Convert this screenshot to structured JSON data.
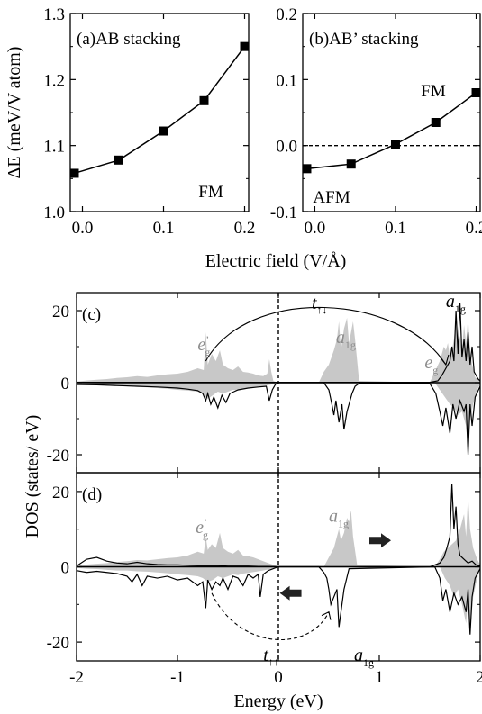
{
  "colors": {
    "axes": "#000000",
    "fill_grey": "#c8c8c8",
    "text_grey": "#8c8c8c",
    "line": "#000000"
  },
  "chart_data": [
    {
      "type": "line",
      "panel_label": "(a)AB stacking",
      "annotation": "FM",
      "x": [
        -0.01,
        0.045,
        0.1,
        0.15,
        0.2
      ],
      "y": [
        1.058,
        1.078,
        1.122,
        1.168,
        1.25
      ],
      "xlim": [
        -0.015,
        0.205
      ],
      "ylim": [
        1.0,
        1.3
      ],
      "xticks": [
        0.0,
        0.1,
        0.2
      ],
      "xtick_labels": [
        "0.0",
        "0.1",
        "0.2"
      ],
      "yticks": [
        1.0,
        1.1,
        1.2,
        1.3
      ],
      "ytick_labels": [
        "1.0",
        "1.1",
        "1.2",
        "1.3"
      ],
      "ylabel": "ΔE (meV/V atom)",
      "marker": "square"
    },
    {
      "type": "line",
      "panel_label": "(b)AB’ stacking",
      "annotation_top": "FM",
      "annotation_bottom": "AFM",
      "x": [
        -0.01,
        0.045,
        0.1,
        0.15,
        0.2
      ],
      "y": [
        -0.035,
        -0.028,
        0.002,
        0.035,
        0.08
      ],
      "xlim": [
        -0.015,
        0.205
      ],
      "ylim": [
        -0.1,
        0.2
      ],
      "xticks": [
        0.0,
        0.1,
        0.2
      ],
      "xtick_labels": [
        "0.0",
        "0.1",
        "0.2"
      ],
      "yticks": [
        -0.1,
        0.0,
        0.1,
        0.2
      ],
      "ytick_labels": [
        "-0.1",
        "0.0",
        "0.1",
        "0.2"
      ],
      "zero_line": "dashed",
      "marker": "square"
    }
  ],
  "xlabel_top": "Electric field (V/Å)",
  "dos": {
    "type": "area",
    "ylabel": "DOS (states/ eV)",
    "xlabel": "Energy (eV)",
    "xlim": [
      -2,
      2
    ],
    "ylim": [
      -25,
      25
    ],
    "xticks": [
      -2,
      -1,
      0,
      1,
      2
    ],
    "xtick_labels": [
      "-2",
      "-1",
      "0",
      "1",
      "2"
    ],
    "yticks": [
      -20,
      0,
      20
    ],
    "ytick_labels": [
      "-20",
      "0",
      "20"
    ],
    "fermi_level": 0,
    "panels": [
      {
        "label": "(c)",
        "hopping_label": "t",
        "hopping_sub": "↑↓",
        "orbital_labels": [
          {
            "text": "e",
            "sub": "g",
            "prime": "’",
            "color": "grey",
            "x": -0.8,
            "y": 9
          },
          {
            "text": "a",
            "sub": "1g",
            "color": "grey",
            "x": 0.57,
            "y": 11
          },
          {
            "text": "e",
            "sub": "g",
            "color": "grey",
            "x": 1.45,
            "y": 4
          },
          {
            "text": "a",
            "sub": "1g",
            "color": "black",
            "x": 1.66,
            "y": 21
          }
        ],
        "grey_up": {
          "x": [
            -2.0,
            -1.9,
            -1.8,
            -1.7,
            -1.6,
            -1.5,
            -1.4,
            -1.3,
            -1.2,
            -1.1,
            -1.0,
            -0.9,
            -0.8,
            -0.74,
            -0.72,
            -0.7,
            -0.66,
            -0.62,
            -0.58,
            -0.55,
            -0.5,
            -0.45,
            -0.4,
            -0.35,
            -0.3,
            -0.25,
            -0.2,
            -0.15,
            -0.11,
            -0.09,
            -0.07,
            -0.05,
            0.0,
            0.4,
            0.45,
            0.5,
            0.55,
            0.58,
            0.6,
            0.62,
            0.65,
            0.68,
            0.7,
            0.72,
            0.74,
            0.76,
            0.8,
            1.5,
            1.55,
            1.6,
            1.62,
            1.64,
            1.66,
            1.68,
            1.7,
            1.72,
            1.74,
            1.76,
            1.78,
            1.8,
            1.82,
            1.84,
            1.86,
            1.88,
            1.9,
            1.92,
            1.95,
            2.0
          ],
          "y": [
            0.3,
            0.6,
            0.8,
            1.0,
            1.3,
            1.5,
            1.8,
            1.6,
            2.0,
            2.3,
            2.5,
            3.0,
            4.0,
            3.5,
            14.0,
            5.0,
            8.0,
            6.0,
            9.0,
            5.0,
            4.0,
            3.5,
            4.5,
            3.0,
            2.8,
            2.5,
            2.0,
            1.8,
            2.5,
            6.5,
            3.0,
            0.5,
            0.0,
            0.0,
            3.0,
            5.0,
            9.0,
            12.0,
            17.0,
            9.0,
            15.0,
            18.0,
            11.0,
            14.0,
            17.0,
            12.0,
            0.5,
            0.0,
            3.0,
            6.0,
            8.0,
            10.0,
            9.0,
            11.0,
            7.0,
            9.0,
            12.0,
            18.0,
            10.0,
            13.0,
            9.0,
            16.0,
            11.0,
            18.0,
            9.0,
            5.0,
            1.5,
            0.5
          ]
        },
        "grey_down": {
          "x": [
            -2.0,
            -1.9,
            -1.8,
            -1.7,
            -1.6,
            -1.5,
            -1.4,
            -1.3,
            -1.2,
            -1.1,
            -1.0,
            -0.9,
            -0.8,
            -0.75,
            -0.7,
            -0.65,
            -0.6,
            -0.55,
            -0.5,
            -0.45,
            -0.4,
            -0.35,
            -0.3,
            -0.25,
            -0.2,
            -0.15,
            -0.1,
            -0.05,
            0.0,
            1.55,
            1.6,
            1.65,
            1.7,
            1.74,
            1.78,
            1.82,
            1.86,
            1.88,
            1.9,
            1.93,
            1.97,
            2.0
          ],
          "y": [
            -0.3,
            -0.5,
            -0.6,
            -0.8,
            -1.0,
            -1.0,
            -1.2,
            -1.3,
            -1.5,
            -1.7,
            -2.0,
            -2.2,
            -2.5,
            -3.0,
            -4.5,
            -3.5,
            -2.5,
            -3.0,
            -2.5,
            -2.0,
            -2.2,
            -1.8,
            -1.6,
            -1.4,
            -1.2,
            -1.0,
            -0.7,
            -0.4,
            0.0,
            0.0,
            -2.0,
            -4.0,
            -6.0,
            -7.0,
            -9.0,
            -8.0,
            -12.0,
            -18.0,
            -10.0,
            -6.0,
            -2.0,
            -0.5
          ]
        },
        "line_up": {
          "x": [
            -2.0,
            1.5,
            1.58,
            1.62,
            1.66,
            1.7,
            1.72,
            1.74,
            1.76,
            1.78,
            1.8,
            1.82,
            1.84,
            1.86,
            1.88,
            1.9,
            1.92,
            1.94,
            1.96,
            1.98,
            2.0
          ],
          "y": [
            0.1,
            0.1,
            0.5,
            2.0,
            4.0,
            6.0,
            10.0,
            6.0,
            20.0,
            8.0,
            22.0,
            7.0,
            12.0,
            6.0,
            14.0,
            5.0,
            10.0,
            3.0,
            2.0,
            1.0,
            0.5
          ]
        },
        "line_down": {
          "x": [
            -2.0,
            -1.8,
            -1.6,
            -1.4,
            -1.2,
            -1.0,
            -0.9,
            -0.8,
            -0.75,
            -0.72,
            -0.7,
            -0.67,
            -0.64,
            -0.6,
            -0.56,
            -0.52,
            -0.48,
            -0.44,
            -0.4,
            -0.3,
            -0.2,
            -0.12,
            -0.09,
            -0.06,
            -0.03,
            0.0,
            0.45,
            0.5,
            0.53,
            0.55,
            0.57,
            0.6,
            0.63,
            0.65,
            0.68,
            0.7,
            0.73,
            0.76,
            0.8,
            1.5,
            1.56,
            1.6,
            1.63,
            1.66,
            1.7,
            1.73,
            1.76,
            1.8,
            1.84,
            1.86,
            1.88,
            1.9,
            1.92,
            1.95,
            2.0
          ],
          "y": [
            -0.5,
            -0.6,
            -0.8,
            -1.0,
            -1.2,
            -1.5,
            -1.8,
            -2.2,
            -3.0,
            -5.0,
            -3.0,
            -6.0,
            -4.0,
            -7.0,
            -3.5,
            -5.5,
            -3.0,
            -2.5,
            -2.0,
            -1.5,
            -1.2,
            -1.0,
            -5.0,
            -2.0,
            -0.5,
            0.0,
            0.0,
            -2.0,
            -6.0,
            -9.0,
            -5.0,
            -11.0,
            -6.0,
            -13.0,
            -8.0,
            -6.0,
            -3.0,
            -1.0,
            -0.2,
            -0.2,
            -3.0,
            -8.0,
            -12.0,
            -7.0,
            -14.0,
            -6.0,
            -10.0,
            -5.0,
            -8.0,
            -6.0,
            -20.0,
            -6.0,
            -12.0,
            -4.0,
            -1.0
          ]
        }
      },
      {
        "label": "(d)",
        "hopping_label": "t",
        "hopping_sub": "↑↑",
        "orbital_labels": [
          {
            "text": "e",
            "sub": "g",
            "prime": "’",
            "color": "grey",
            "x": -0.82,
            "y": 9
          },
          {
            "text": "a",
            "sub": "1g",
            "color": "grey",
            "x": 0.5,
            "y": 12
          },
          {
            "text": "a",
            "sub": "1g",
            "color": "black",
            "x": 0.75,
            "y": -25
          }
        ],
        "grey_up": {
          "x": [
            -2.0,
            -1.9,
            -1.8,
            -1.7,
            -1.6,
            -1.5,
            -1.4,
            -1.3,
            -1.2,
            -1.1,
            -1.0,
            -0.9,
            -0.8,
            -0.74,
            -0.72,
            -0.7,
            -0.66,
            -0.62,
            -0.58,
            -0.55,
            -0.5,
            -0.45,
            -0.4,
            -0.35,
            -0.3,
            -0.25,
            -0.2,
            -0.15,
            -0.1,
            -0.05,
            0.0,
            0.45,
            0.5,
            0.55,
            0.58,
            0.6,
            0.62,
            0.65,
            0.68,
            0.7,
            0.72,
            0.74,
            0.78,
            1.55,
            1.6,
            1.64,
            1.68,
            1.72,
            1.76,
            1.8,
            1.84,
            1.86,
            1.88,
            1.9,
            1.93,
            1.97,
            2.0
          ],
          "y": [
            0.3,
            0.6,
            0.8,
            1.0,
            1.3,
            1.5,
            1.8,
            1.7,
            2.0,
            2.3,
            2.5,
            3.0,
            4.0,
            3.5,
            8.0,
            4.5,
            6.0,
            5.0,
            9.0,
            5.0,
            4.0,
            3.5,
            4.5,
            3.0,
            2.8,
            2.5,
            2.0,
            1.5,
            1.0,
            0.5,
            0.0,
            0.0,
            2.5,
            5.0,
            8.0,
            10.0,
            7.0,
            9.0,
            13.0,
            12.0,
            15.0,
            8.0,
            0.5,
            0.0,
            2.0,
            4.0,
            5.0,
            6.0,
            7.0,
            10.0,
            14.0,
            8.0,
            19.0,
            10.0,
            5.0,
            2.0,
            0.5
          ]
        },
        "grey_down": {
          "x": [
            -2.0,
            -1.9,
            -1.8,
            -1.7,
            -1.6,
            -1.5,
            -1.4,
            -1.3,
            -1.2,
            -1.1,
            -1.0,
            -0.9,
            -0.8,
            -0.75,
            -0.7,
            -0.65,
            -0.6,
            -0.55,
            -0.5,
            -0.45,
            -0.4,
            -0.35,
            -0.3,
            -0.25,
            -0.2,
            -0.15,
            -0.1,
            -0.05,
            0.0,
            1.6,
            1.65,
            1.7,
            1.74,
            1.78,
            1.82,
            1.86,
            1.88,
            1.9,
            1.93,
            1.97,
            2.0
          ],
          "y": [
            -0.3,
            -0.5,
            -0.6,
            -0.8,
            -1.0,
            -1.0,
            -1.2,
            -1.3,
            -1.5,
            -1.7,
            -2.0,
            -2.2,
            -2.5,
            -3.0,
            -4.0,
            -3.5,
            -2.5,
            -3.0,
            -2.5,
            -2.0,
            -2.2,
            -1.8,
            -1.6,
            -1.4,
            -1.2,
            -1.0,
            -0.7,
            -0.4,
            0.0,
            0.0,
            -3.0,
            -5.0,
            -8.0,
            -6.0,
            -10.0,
            -15.0,
            -8.0,
            -18.0,
            -8.0,
            -3.0,
            -0.5
          ]
        },
        "line_up": {
          "x": [
            -2.0,
            -1.9,
            -1.8,
            -1.7,
            -1.6,
            -1.5,
            -1.4,
            -1.3,
            -1.2,
            -1.1,
            -1.0,
            -0.9,
            -0.8,
            -0.7,
            -0.6,
            -0.5,
            -0.4,
            -0.3,
            -0.2,
            -0.1,
            0.0,
            1.5,
            1.55,
            1.6,
            1.64,
            1.67,
            1.7,
            1.72,
            1.74,
            1.76,
            1.78,
            1.8,
            1.84,
            1.88,
            1.92,
            1.96,
            2.0
          ],
          "y": [
            0.2,
            2.0,
            2.5,
            1.5,
            1.0,
            0.8,
            1.2,
            0.8,
            0.6,
            0.5,
            0.5,
            0.4,
            0.3,
            0.3,
            0.3,
            0.2,
            0.2,
            0.2,
            0.1,
            0.1,
            0.0,
            0.0,
            0.5,
            1.0,
            2.5,
            5.0,
            8.0,
            22.0,
            10.0,
            16.0,
            6.0,
            3.0,
            2.0,
            1.0,
            1.5,
            0.5,
            0.2
          ]
        },
        "line_down": {
          "x": [
            -2.0,
            -1.9,
            -1.8,
            -1.7,
            -1.6,
            -1.5,
            -1.45,
            -1.4,
            -1.35,
            -1.3,
            -1.2,
            -1.1,
            -1.0,
            -0.9,
            -0.8,
            -0.75,
            -0.72,
            -0.7,
            -0.66,
            -0.62,
            -0.58,
            -0.55,
            -0.5,
            -0.45,
            -0.4,
            -0.35,
            -0.3,
            -0.25,
            -0.2,
            -0.18,
            -0.15,
            -0.1,
            0.0,
            0.4,
            0.45,
            0.48,
            0.5,
            0.52,
            0.55,
            0.58,
            0.6,
            0.62,
            0.65,
            0.7,
            1.55,
            1.6,
            1.63,
            1.66,
            1.7,
            1.74,
            1.78,
            1.82,
            1.86,
            1.88,
            1.9,
            1.92,
            1.95,
            2.0
          ],
          "y": [
            -1.0,
            -1.5,
            -1.2,
            -1.5,
            -1.8,
            -2.5,
            -4.0,
            -2.0,
            -5.0,
            -2.5,
            -3.0,
            -2.5,
            -3.5,
            -3.0,
            -5.0,
            -4.0,
            -11.0,
            -3.5,
            -6.0,
            -4.0,
            -5.0,
            -3.0,
            -6.0,
            -2.5,
            -3.0,
            -5.0,
            -2.0,
            -3.0,
            -2.0,
            -8.0,
            -2.0,
            -1.0,
            0.0,
            0.0,
            -1.5,
            -3.0,
            -6.0,
            -10.0,
            -8.0,
            -6.0,
            -16.0,
            -12.0,
            -6.0,
            -0.5,
            0.0,
            -3.0,
            -9.0,
            -6.0,
            -12.0,
            -7.0,
            -10.0,
            -8.0,
            -12.0,
            -6.0,
            -18.0,
            -8.0,
            -3.0,
            -0.5
          ]
        }
      }
    ]
  }
}
